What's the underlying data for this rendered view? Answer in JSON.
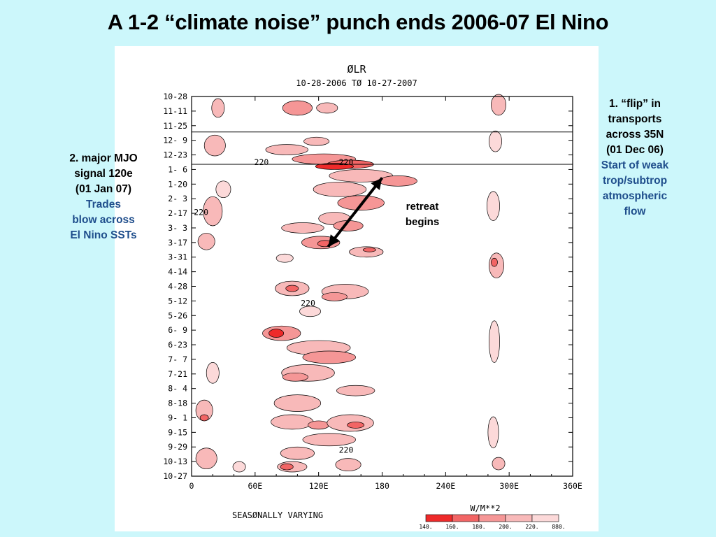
{
  "slide": {
    "title": "A 1-2 “climate noise” punch ends 2006-07 El Nino"
  },
  "callouts": {
    "left": {
      "black_lines": [
        "2. major MJO",
        "signal 120e",
        "(01 Jan 07)"
      ],
      "blue_lines": [
        "Trades",
        "blow across",
        "El Nino SSTs"
      ]
    },
    "right": {
      "black_lines": [
        "1. “flip” in",
        "transports",
        "across 35N",
        "(01 Dec 06)"
      ],
      "blue_lines": [
        "Start of weak",
        "trop/subtrop",
        "atmospheric",
        "flow"
      ]
    },
    "arrow_note": [
      "retreat",
      "begins"
    ]
  },
  "colors": {
    "background": "#ccf7fb",
    "title_text": "#000000",
    "callout_blue": "#1f4e8c",
    "arrow": "#000000",
    "level_140": "#ee2a2a",
    "level_160": "#f26565",
    "level_180": "#f59696",
    "level_200": "#f8b9b9",
    "level_220": "#fcd9d9"
  },
  "chart_data": {
    "type": "heatmap",
    "title": "ØLR",
    "subtitle": "10-28-2006 TØ 10-27-2007",
    "footer_label": "SEASØNALLY VARYING",
    "xlabel": "",
    "ylabel": "",
    "x_range": [
      0,
      360
    ],
    "x_ticks": [
      {
        "value": 0,
        "label": "0"
      },
      {
        "value": 60,
        "label": "60E"
      },
      {
        "value": 120,
        "label": "120E"
      },
      {
        "value": 180,
        "label": "180"
      },
      {
        "value": 240,
        "label": "240E"
      },
      {
        "value": 300,
        "label": "300E"
      },
      {
        "value": 360,
        "label": "360E"
      }
    ],
    "y_range": [
      "2006-10-28",
      "2007-10-27"
    ],
    "y_ticks": [
      {
        "date": "2006-10-28",
        "label": "10-28"
      },
      {
        "date": "2006-11-11",
        "label": "11-11"
      },
      {
        "date": "2006-11-25",
        "label": "11-25"
      },
      {
        "date": "2006-12-09",
        "label": "12- 9"
      },
      {
        "date": "2006-12-23",
        "label": "12-23"
      },
      {
        "date": "2007-01-06",
        "label": "1- 6"
      },
      {
        "date": "2007-01-20",
        "label": "1-20"
      },
      {
        "date": "2007-02-03",
        "label": "2- 3"
      },
      {
        "date": "2007-02-17",
        "label": "2-17"
      },
      {
        "date": "2007-03-03",
        "label": "3- 3"
      },
      {
        "date": "2007-03-17",
        "label": "3-17"
      },
      {
        "date": "2007-03-31",
        "label": "3-31"
      },
      {
        "date": "2007-04-14",
        "label": "4-14"
      },
      {
        "date": "2007-04-28",
        "label": "4-28"
      },
      {
        "date": "2007-05-12",
        "label": "5-12"
      },
      {
        "date": "2007-05-26",
        "label": "5-26"
      },
      {
        "date": "2007-06-09",
        "label": "6- 9"
      },
      {
        "date": "2007-06-23",
        "label": "6-23"
      },
      {
        "date": "2007-07-07",
        "label": "7- 7"
      },
      {
        "date": "2007-07-21",
        "label": "7-21"
      },
      {
        "date": "2007-08-04",
        "label": "8- 4"
      },
      {
        "date": "2007-08-18",
        "label": "8-18"
      },
      {
        "date": "2007-09-01",
        "label": "9- 1"
      },
      {
        "date": "2007-09-15",
        "label": "9-15"
      },
      {
        "date": "2007-09-29",
        "label": "9-29"
      },
      {
        "date": "2007-10-13",
        "label": "10-13"
      },
      {
        "date": "2007-10-27",
        "label": "10-27"
      }
    ],
    "reference_lines": [
      "2006-12-01",
      "2007-01-01"
    ],
    "arrow": {
      "from": {
        "lon": 180,
        "date": "2007-01-14"
      },
      "to": {
        "lon": 129,
        "date": "2007-03-21"
      }
    },
    "legend": {
      "title": "W/M**2",
      "placement": "bottom-right",
      "levels": [
        {
          "label": "140.",
          "color": "#ee2a2a"
        },
        {
          "label": "160.",
          "color": "#f26565"
        },
        {
          "label": "180.",
          "color": "#f59696"
        },
        {
          "label": "200.",
          "color": "#f8b9b9"
        },
        {
          "label": "220.",
          "color": "#fcd9d9"
        }
      ],
      "end_label": "880."
    },
    "contour_labels": [
      {
        "text": "220",
        "lon": 66,
        "date": "2006-12-30"
      },
      {
        "text": "220",
        "lon": 146,
        "date": "2006-12-30"
      },
      {
        "text": "220",
        "lon": 9,
        "date": "2007-02-16"
      },
      {
        "text": "220",
        "lon": 110,
        "date": "2007-05-14"
      },
      {
        "text": "220",
        "lon": 146,
        "date": "2007-10-02"
      }
    ],
    "blobs": [
      {
        "lon": 25,
        "date": "2006-11-08",
        "lon_half": 6,
        "day_half": 9,
        "level": 200
      },
      {
        "lon": 22,
        "date": "2006-12-14",
        "lon_half": 10,
        "day_half": 10,
        "level": 200
      },
      {
        "lon": 100,
        "date": "2006-11-08",
        "lon_half": 14,
        "day_half": 7,
        "level": 180
      },
      {
        "lon": 128,
        "date": "2006-11-08",
        "lon_half": 10,
        "day_half": 5,
        "level": 200
      },
      {
        "lon": 118,
        "date": "2006-12-10",
        "lon_half": 12,
        "day_half": 4,
        "level": 200
      },
      {
        "lon": 90,
        "date": "2006-12-18",
        "lon_half": 20,
        "day_half": 5,
        "level": 200
      },
      {
        "lon": 125,
        "date": "2006-12-27",
        "lon_half": 30,
        "day_half": 5,
        "level": 180
      },
      {
        "lon": 150,
        "date": "2007-01-01",
        "lon_half": 22,
        "day_half": 4,
        "level": 160
      },
      {
        "lon": 135,
        "date": "2007-01-03",
        "lon_half": 18,
        "day_half": 3,
        "level": 140
      },
      {
        "lon": 160,
        "date": "2007-01-12",
        "lon_half": 30,
        "day_half": 6,
        "level": 200
      },
      {
        "lon": 195,
        "date": "2007-01-17",
        "lon_half": 18,
        "day_half": 5,
        "level": 180
      },
      {
        "lon": 140,
        "date": "2007-01-25",
        "lon_half": 25,
        "day_half": 7,
        "level": 200
      },
      {
        "lon": 160,
        "date": "2007-02-07",
        "lon_half": 22,
        "day_half": 7,
        "level": 180
      },
      {
        "lon": 135,
        "date": "2007-02-22",
        "lon_half": 15,
        "day_half": 6,
        "level": 200
      },
      {
        "lon": 105,
        "date": "2007-03-03",
        "lon_half": 20,
        "day_half": 5,
        "level": 200
      },
      {
        "lon": 148,
        "date": "2007-03-01",
        "lon_half": 14,
        "day_half": 5,
        "level": 180
      },
      {
        "lon": 122,
        "date": "2007-03-17",
        "lon_half": 18,
        "day_half": 6,
        "level": 180
      },
      {
        "lon": 126,
        "date": "2007-03-18",
        "lon_half": 7,
        "day_half": 3,
        "level": 160
      },
      {
        "lon": 165,
        "date": "2007-03-26",
        "lon_half": 16,
        "day_half": 5,
        "level": 200
      },
      {
        "lon": 168,
        "date": "2007-03-24",
        "lon_half": 6,
        "day_half": 2,
        "level": 160
      },
      {
        "lon": 20,
        "date": "2007-02-15",
        "lon_half": 9,
        "day_half": 14,
        "level": 200
      },
      {
        "lon": 14,
        "date": "2007-03-16",
        "lon_half": 8,
        "day_half": 8,
        "level": 200
      },
      {
        "lon": 30,
        "date": "2007-01-25",
        "lon_half": 7,
        "day_half": 8,
        "level": 220
      },
      {
        "lon": 88,
        "date": "2007-04-01",
        "lon_half": 8,
        "day_half": 4,
        "level": 220
      },
      {
        "lon": 95,
        "date": "2007-04-30",
        "lon_half": 16,
        "day_half": 7,
        "level": 200
      },
      {
        "lon": 95,
        "date": "2007-04-30",
        "lon_half": 6,
        "day_half": 3,
        "level": 160
      },
      {
        "lon": 145,
        "date": "2007-05-03",
        "lon_half": 22,
        "day_half": 7,
        "level": 200
      },
      {
        "lon": 135,
        "date": "2007-05-08",
        "lon_half": 12,
        "day_half": 4,
        "level": 180
      },
      {
        "lon": 112,
        "date": "2007-05-22",
        "lon_half": 10,
        "day_half": 5,
        "level": 220
      },
      {
        "lon": 85,
        "date": "2007-06-12",
        "lon_half": 18,
        "day_half": 7,
        "level": 180
      },
      {
        "lon": 80,
        "date": "2007-06-12",
        "lon_half": 7,
        "day_half": 4,
        "level": 140
      },
      {
        "lon": 120,
        "date": "2007-06-26",
        "lon_half": 30,
        "day_half": 7,
        "level": 200
      },
      {
        "lon": 130,
        "date": "2007-07-05",
        "lon_half": 25,
        "day_half": 6,
        "level": 180
      },
      {
        "lon": 110,
        "date": "2007-07-20",
        "lon_half": 25,
        "day_half": 8,
        "level": 200
      },
      {
        "lon": 98,
        "date": "2007-07-24",
        "lon_half": 12,
        "day_half": 4,
        "level": 180
      },
      {
        "lon": 155,
        "date": "2007-08-06",
        "lon_half": 18,
        "day_half": 5,
        "level": 200
      },
      {
        "lon": 100,
        "date": "2007-08-18",
        "lon_half": 22,
        "day_half": 8,
        "level": 200
      },
      {
        "lon": 95,
        "date": "2007-09-05",
        "lon_half": 20,
        "day_half": 7,
        "level": 200
      },
      {
        "lon": 120,
        "date": "2007-09-08",
        "lon_half": 10,
        "day_half": 4,
        "level": 180
      },
      {
        "lon": 150,
        "date": "2007-09-06",
        "lon_half": 22,
        "day_half": 8,
        "level": 200
      },
      {
        "lon": 155,
        "date": "2007-09-08",
        "lon_half": 8,
        "day_half": 3,
        "level": 160
      },
      {
        "lon": 130,
        "date": "2007-09-22",
        "lon_half": 25,
        "day_half": 6,
        "level": 200
      },
      {
        "lon": 100,
        "date": "2007-10-05",
        "lon_half": 16,
        "day_half": 6,
        "level": 200
      },
      {
        "lon": 95,
        "date": "2007-10-18",
        "lon_half": 14,
        "day_half": 5,
        "level": 200
      },
      {
        "lon": 90,
        "date": "2007-10-18",
        "lon_half": 6,
        "day_half": 3,
        "level": 160
      },
      {
        "lon": 148,
        "date": "2007-10-16",
        "lon_half": 12,
        "day_half": 6,
        "level": 200
      },
      {
        "lon": 20,
        "date": "2007-07-20",
        "lon_half": 6,
        "day_half": 10,
        "level": 220
      },
      {
        "lon": 12,
        "date": "2007-08-25",
        "lon_half": 8,
        "day_half": 10,
        "level": 200
      },
      {
        "lon": 12,
        "date": "2007-09-01",
        "lon_half": 4,
        "day_half": 3,
        "level": 160
      },
      {
        "lon": 14,
        "date": "2007-10-10",
        "lon_half": 10,
        "day_half": 10,
        "level": 200
      },
      {
        "lon": 45,
        "date": "2007-10-18",
        "lon_half": 6,
        "day_half": 5,
        "level": 220
      },
      {
        "lon": 290,
        "date": "2006-11-05",
        "lon_half": 7,
        "day_half": 10,
        "level": 200
      },
      {
        "lon": 287,
        "date": "2006-12-10",
        "lon_half": 6,
        "day_half": 10,
        "level": 220
      },
      {
        "lon": 285,
        "date": "2007-02-10",
        "lon_half": 6,
        "day_half": 14,
        "level": 220
      },
      {
        "lon": 288,
        "date": "2007-04-08",
        "lon_half": 7,
        "day_half": 12,
        "level": 200
      },
      {
        "lon": 286,
        "date": "2007-04-05",
        "lon_half": 3,
        "day_half": 4,
        "level": 160
      },
      {
        "lon": 286,
        "date": "2007-06-20",
        "lon_half": 5,
        "day_half": 20,
        "level": 220
      },
      {
        "lon": 285,
        "date": "2007-09-15",
        "lon_half": 5,
        "day_half": 15,
        "level": 220
      },
      {
        "lon": 290,
        "date": "2007-10-15",
        "lon_half": 6,
        "day_half": 6,
        "level": 200
      }
    ]
  }
}
